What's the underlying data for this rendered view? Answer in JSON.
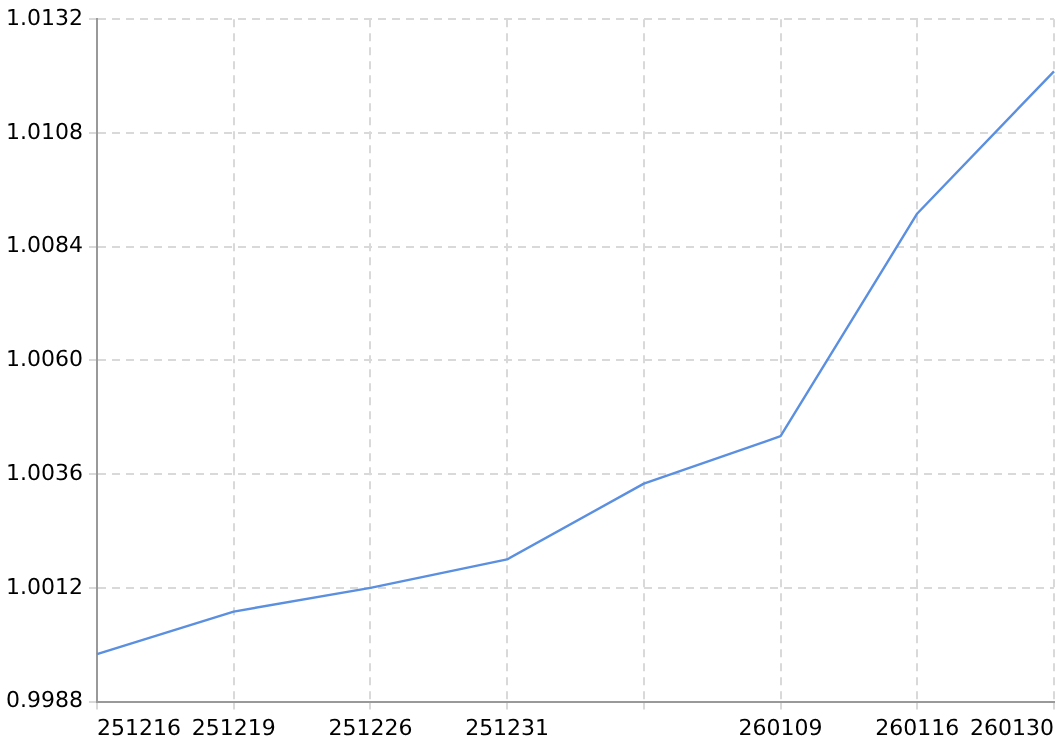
{
  "chart_data": {
    "type": "line",
    "categories": [
      "251216",
      "251219",
      "251226",
      "251231",
      null,
      "260109",
      "260116",
      "260130"
    ],
    "series": [
      {
        "color": "#5b8fe0",
        "values": [
          0.9998,
          1.0007,
          1.0012,
          1.0018,
          1.0034,
          1.0044,
          1.0091,
          1.0121
        ]
      }
    ],
    "ylim": [
      0.9988,
      1.0132
    ],
    "yticks": [
      0.9988,
      1.0012,
      1.0036,
      {
        "value": 1.006,
        "label": "1.0060"
      },
      1.0084,
      1.0108,
      1.0132
    ],
    "grid": true,
    "legend": false,
    "marker": "none",
    "line_style": "solid"
  }
}
